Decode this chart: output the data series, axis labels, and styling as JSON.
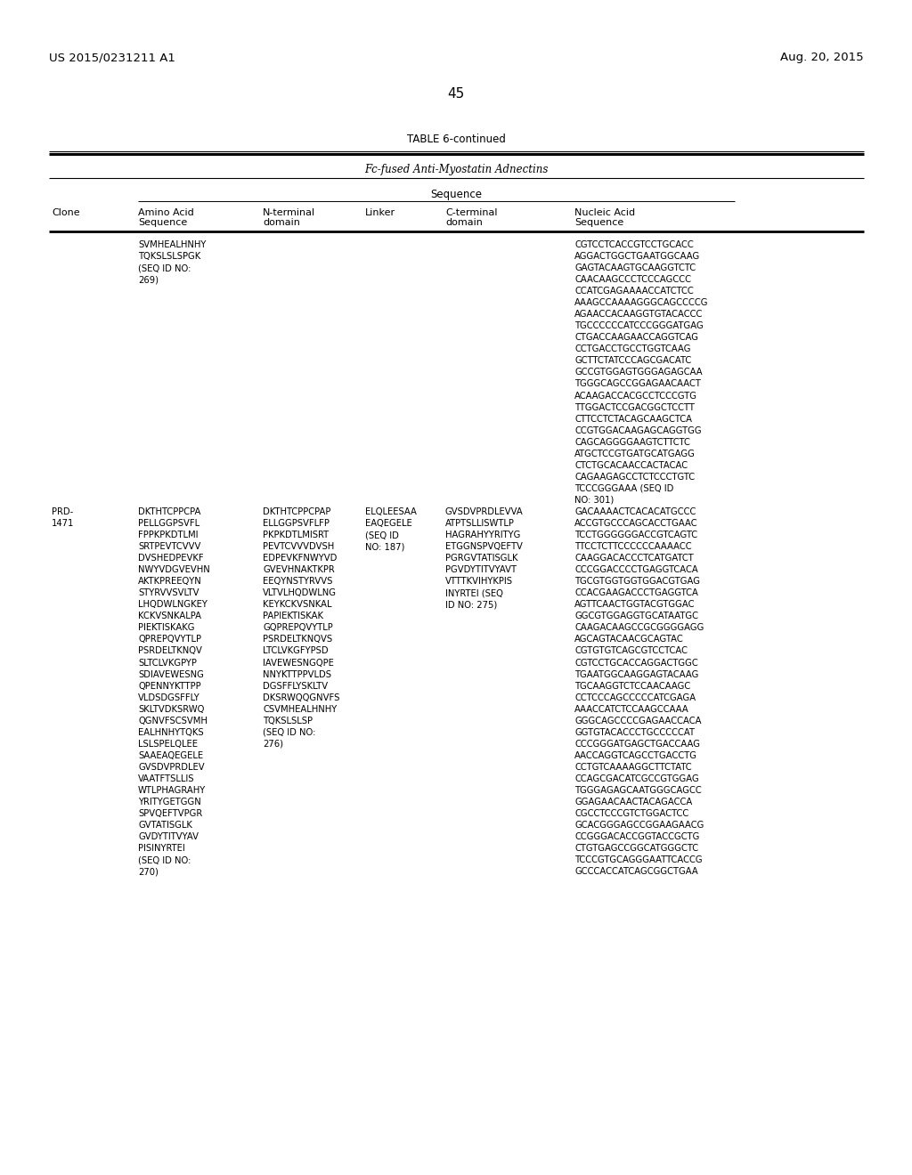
{
  "patent_left": "US 2015/0231211 A1",
  "patent_right": "Aug. 20, 2015",
  "page_number": "45",
  "table_title": "TABLE 6-continued",
  "table_subtitle": "Fc-fused Anti-Myostatin Adnectins",
  "col_header_group": "Sequence",
  "col_headers_line1": [
    "Clone",
    "Amino Acid",
    "N-terminal",
    "Linker",
    "C-terminal",
    "Nucleic Acid"
  ],
  "col_headers_line2": [
    "",
    "Sequence",
    "domain",
    "",
    "domain",
    "Sequence"
  ],
  "row1_amino_acid": "SVMHEALHNHY\nTQKSLSLSPGK\n(SEQ ID NO:\n269)",
  "row1_nucleic_acid": "CGTCCTCACCGTCCTGCACC\nAGGACTGGCTGAATGGCAAG\nGAGTACAAGTGCAAGGTCTC\nCAACAAGCCCTCCCAGCCC\nCCATCGAGAAAACCATCTCC\nAAAGCCAAAAGGGCAGCCCCG\nAGAACCACAAGGTGTACACCC\nTGCCCCCCATCCCGGGATGAG\nCTGACCAAGAACCAGGTCAG\nCCTGACCTGCCTGGTCAAG\nGCTTCTATCCCAGCGACATC\nGCCGTGGAGTGGGAGAGCAA\nTGGGCAGCCGGAGAACAACT\nACAAGACCACGCCTCCCGTG\nTTGGACTCCGACGGCTCCTT\nCTTCCTCTACAGCAAGCTCA\nCCGTGGACAAGAGCAGGTGG\nCAGCAGGGGAAGTCTTCTC\nATGCTCCGTGATGCATGAGG\nCTCTGCACAACCACTACAC\nCAGAAGAGCCTCTCCCTGTC\nTCCCGGGAAA (SEQ ID\nNO: 301)",
  "row2_clone": "PRD-\n1471",
  "row2_amino_acid": "DKTHTCPPCPA\nPELLGGPSVFL\nFPPKPKDTLMI\nSRTPEVTCVVV\nDVSHEDPEVKF\nNWYVDGVEVHN\nAKTKPREEQYN\nSTYRVVSVLTV\nLHQDWLNGKEY\nKCKVSNKALPA\nPIEKTISKAKG\nQPREPQVYTLP\nPSRDELTKNQV\nSLTCLVKGPYP\nSDIAVEWESNG\nQPENNYKTTPP\nVLDSDGSFFLY\nSKLTVDKSRWQ\nQGNVFSCSVMH\nEALHNHYTQKS\nLSLSPELQLEE\nSAAEAQEGELE\nGVSDVPRDLEV\nVAATFTSLLIS\nWTLPHAGRAHY\nYRITYGETGGN\nSPVQEFTVPGR\nGVTATISGLK\nGVDYTITVYAV\nPISINYRTEI\n(SEQ ID NO:\n270)",
  "row2_n_terminal": "DKTHTCPPCPAP\nELLGGPSVFLFP\nPKPKDTLMISRT\nPEVTCVVVDVSH\nEDPEVKFNWYVD\nGVEVHNAKTKPR\nEEQYNSTYRVVS\nVLTVLHQDWLNG\nKEYKCKVSNKAL\nPAPIEKTISKAK\nGQPREPQVYTLP\nPSRDELTKNQVS\nLTCLVKGFYPSD\nIAVEWESNGQPE\nNNYKTTPPVLDS\nDGSFFLYSKLTV\nDKSRWQQGNVFS\nCSVMHEALHNHY\nTQKSLSLSP\n(SEQ ID NO:\n276)",
  "row2_linker": "ELQLEESAA\nEAQEGELE\n(SEQ ID\nNO: 187)",
  "row2_c_terminal": "GVSDVPRDLEVVA\nATPTSLLISWTLP\nHAGRAHYYRITYG\nETGGNSPVQEFTV\nPGRGVTATISGLK\nPGVDYTITVYAVT\nVTTTKVIHYKPIS\nINYRTEI (SEQ\nID NO: 275)",
  "row2_nucleic_acid": "GACAAAACTCACACATGCCC\nACCGTGCCCAGCACCTGAAC\nTCCTGGGGGGACCGTCAGTC\nTTCCTCTTCCCCCCAAAACC\nCAAGGACACCCTCATGATCT\nCCCGGACCCCTGAGGTCACA\nTGCGTGGTGGTGGACGTGAG\nCCACGAAGACCCTGAGGTCA\nAGTTCAACTGGTACGTGGAC\nGGCGTGGAGGTGCATAATGC\nCAAGACAAGCCGCGGGGAGG\nAGCAGTACAACGCAGTAC\nCGTGTGTCAGCGTCCTCAC\nCGTCCTGCACCAGGACTGGC\nTGAATGGCAAGGAGTACAAG\nTGCAAGGTCTCCAACAAGC\nCCTCCCAGCCCCCATCGAGA\nAAACCATCTCCAAGCCAAA\nGGGCAGCCCCGAGAACCACA\nGGTGTACACCCTGCCCCCAT\nCCCGGGATGAGCTGACCAAG\nAACCAGGTCAGCCTGACCTG\nCCTGTCAAAAGGCTTCTATC\nCCAGCGACATCGCCGTGGAG\nTGGGAGAGCAATGGGCAGCC\nGGAGAACAACTACAGACCA\nCGCCTCCCGTCTGGACTCC\nGCACGGGAGCCGGAAGAACG\nCCGGGACACCGGTACCGCTG\nCTGTGAGCCGGCATGGGCTC\nTCCCGTGCAGGGAATTCACCG\nGCCCACCATCAGCGGCTGAA",
  "background_color": "#ffffff",
  "text_color": "#000000"
}
